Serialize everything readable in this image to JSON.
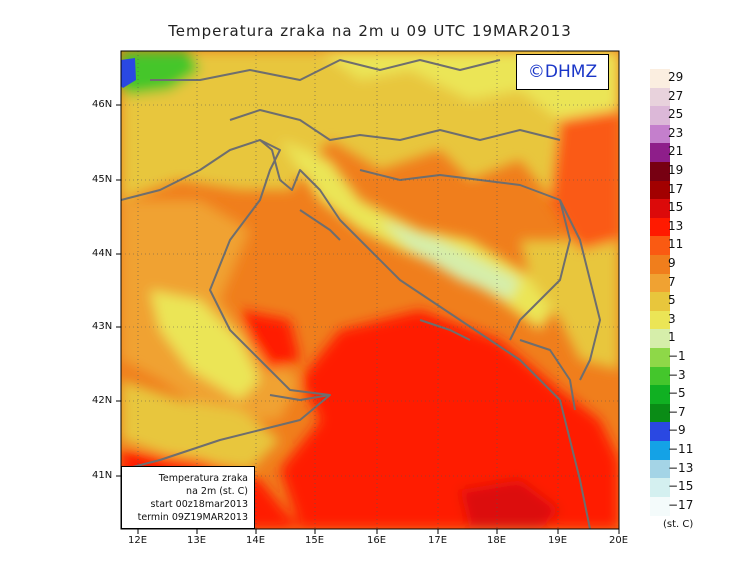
{
  "title": "Temperatura zraka na 2m u 09 UTC 19MAR2013",
  "copyright": "©DHMZ",
  "info_box": {
    "line1": "Temperatura zraka",
    "line2": "na 2m (st. C)",
    "line3": "start 00z18mar2013",
    "line4": "termin 09Z19MAR2013"
  },
  "axes": {
    "lat_labels": [
      "46N",
      "45N",
      "44N",
      "43N",
      "42N",
      "41N"
    ],
    "lon_labels": [
      "12E",
      "13E",
      "14E",
      "15E",
      "16E",
      "17E",
      "18E",
      "19E",
      "20E"
    ]
  },
  "colorbar": {
    "units": "(st. C)",
    "levels": [
      {
        "label": "29",
        "color": "#fbeee0"
      },
      {
        "label": "27",
        "color": "#e8d2dc"
      },
      {
        "label": "25",
        "color": "#dcb8d8"
      },
      {
        "label": "23",
        "color": "#c47fcc"
      },
      {
        "label": "21",
        "color": "#8e1e8a"
      },
      {
        "label": "19",
        "color": "#770012"
      },
      {
        "label": "17",
        "color": "#a20000"
      },
      {
        "label": "15",
        "color": "#dc0a0a"
      },
      {
        "label": "13",
        "color": "#ff1a00"
      },
      {
        "label": "11",
        "color": "#fa5a12"
      },
      {
        "label": "9",
        "color": "#f07e1c"
      },
      {
        "label": "7",
        "color": "#f0a232"
      },
      {
        "label": "5",
        "color": "#e8c63c"
      },
      {
        "label": "3",
        "color": "#ebe556"
      },
      {
        "label": "1",
        "color": "#d6eeaa"
      },
      {
        "label": "−1",
        "color": "#8ed848"
      },
      {
        "label": "−3",
        "color": "#44c62c"
      },
      {
        "label": "−5",
        "color": "#10b022"
      },
      {
        "label": "−7",
        "color": "#0a8c16"
      },
      {
        "label": "−9",
        "color": "#2a48e2"
      },
      {
        "label": "−11",
        "color": "#14a2e6"
      },
      {
        "label": "−13",
        "color": "#a4d4e6"
      },
      {
        "label": "−15",
        "color": "#d4f0f0"
      },
      {
        "label": "−17",
        "color": "#f4fbfb"
      }
    ]
  }
}
